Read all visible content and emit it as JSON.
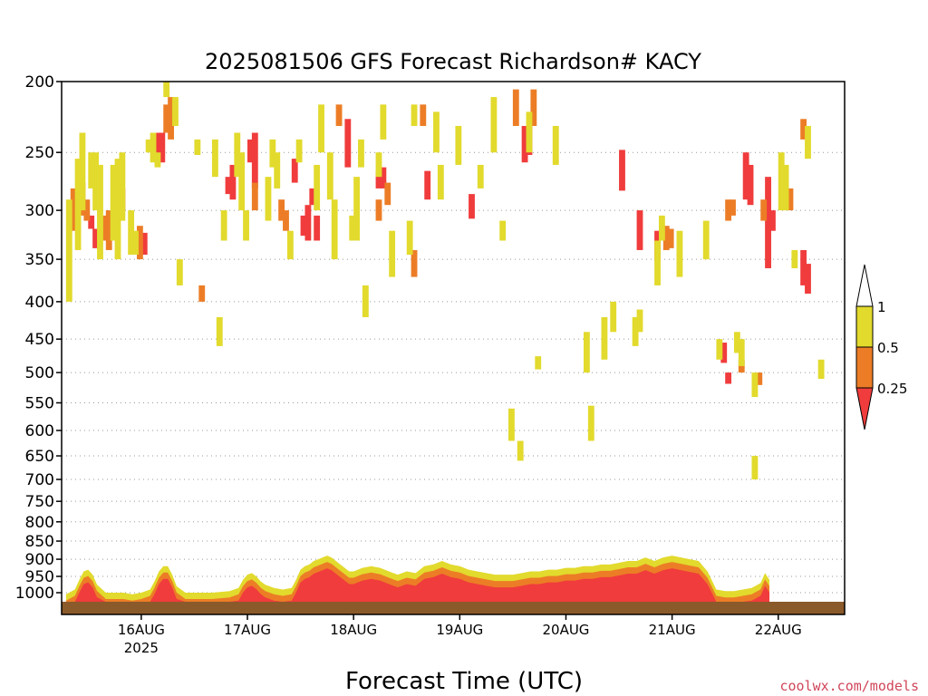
{
  "chart_data": {
    "type": "heatmap",
    "title": "2025081506 GFS Forecast Richardson# KACY",
    "xlabel": "Forecast Time (UTC)",
    "ylabel": "",
    "credit": "coolwx.com/models",
    "x_start_hour": 6,
    "x_end_hour": 183,
    "x_ticks": [
      {
        "label": "16AUG",
        "sub": "2025",
        "hour": 24
      },
      {
        "label": "17AUG",
        "hour": 48
      },
      {
        "label": "18AUG",
        "hour": 72
      },
      {
        "label": "19AUG",
        "hour": 96
      },
      {
        "label": "20AUG",
        "hour": 120
      },
      {
        "label": "21AUG",
        "hour": 144
      },
      {
        "label": "22AUG",
        "hour": 168
      }
    ],
    "y_ticks": [
      "200",
      "250",
      "300",
      "350",
      "400",
      "450",
      "500",
      "550",
      "600",
      "650",
      "700",
      "750",
      "800",
      "850",
      "900",
      "950",
      "1000"
    ],
    "y_range": [
      1000,
      200
    ],
    "legend": {
      "placement": "right",
      "labels": [
        "1",
        "0.5",
        "0.25"
      ],
      "colors": {
        "low": "#f03c3c",
        "mid": "#ec7d26",
        "high": "#e2da2d",
        "ground": "#8b5a2b"
      }
    },
    "series": [
      {
        "label": "0.25",
        "color": "#f03c3c",
        "cells": [
          [
            12,
            305,
            318
          ],
          [
            13,
            318,
            338
          ],
          [
            19,
            280,
            300
          ],
          [
            24,
            322,
            345
          ],
          [
            27,
            235,
            258
          ],
          [
            28,
            235,
            258
          ],
          [
            43,
            270,
            285
          ],
          [
            44,
            260,
            290
          ],
          [
            48,
            240,
            258
          ],
          [
            49,
            235,
            280
          ],
          [
            58,
            255,
            275
          ],
          [
            60,
            305,
            325
          ],
          [
            61,
            295,
            330
          ],
          [
            62,
            280,
            295
          ],
          [
            63,
            305,
            330
          ],
          [
            70,
            225,
            262
          ],
          [
            77,
            265,
            280
          ],
          [
            78,
            262,
            280
          ],
          [
            88,
            265,
            290
          ],
          [
            98,
            285,
            308
          ],
          [
            110,
            230,
            258
          ],
          [
            111,
            230,
            252
          ],
          [
            132,
            248,
            282
          ],
          [
            136,
            300,
            340
          ],
          [
            140,
            320,
            352
          ],
          [
            155,
            455,
            485
          ],
          [
            156,
            500,
            518
          ],
          [
            160,
            250,
            290
          ],
          [
            161,
            260,
            295
          ],
          [
            165,
            270,
            360
          ],
          [
            166,
            300,
            320
          ],
          [
            173,
            340,
            380
          ],
          [
            174,
            355,
            390
          ]
        ]
      },
      {
        "label": "0.5",
        "color": "#ec7d26",
        "cells": [
          [
            8,
            280,
            320
          ],
          [
            10,
            275,
            305
          ],
          [
            11,
            290,
            310
          ],
          [
            15,
            305,
            330
          ],
          [
            16,
            300,
            340
          ],
          [
            23,
            315,
            350
          ],
          [
            29,
            215,
            235
          ],
          [
            30,
            210,
            240
          ],
          [
            37,
            380,
            400
          ],
          [
            49,
            275,
            300
          ],
          [
            55,
            290,
            310
          ],
          [
            56,
            300,
            320
          ],
          [
            68,
            215,
            230
          ],
          [
            77,
            290,
            310
          ],
          [
            79,
            275,
            295
          ],
          [
            85,
            340,
            370
          ],
          [
            87,
            215,
            230
          ],
          [
            108,
            205,
            230
          ],
          [
            112,
            205,
            230
          ],
          [
            142,
            315,
            340
          ],
          [
            143,
            318,
            338
          ],
          [
            156,
            290,
            310
          ],
          [
            157,
            290,
            305
          ],
          [
            159,
            480,
            500
          ],
          [
            163,
            500,
            520
          ],
          [
            164,
            290,
            310
          ],
          [
            170,
            280,
            300
          ],
          [
            173,
            225,
            240
          ]
        ]
      },
      {
        "label": "1",
        "color": "#e2da2d",
        "cells": [
          [
            7,
            290,
            400
          ],
          [
            9,
            255,
            340
          ],
          [
            10,
            235,
            300
          ],
          [
            12,
            250,
            280
          ],
          [
            13,
            250,
            300
          ],
          [
            14,
            260,
            350
          ],
          [
            17,
            260,
            330
          ],
          [
            18,
            255,
            350
          ],
          [
            19,
            250,
            310
          ],
          [
            21,
            300,
            345
          ],
          [
            22,
            320,
            345
          ],
          [
            25,
            240,
            250
          ],
          [
            26,
            235,
            258
          ],
          [
            27,
            250,
            262
          ],
          [
            29,
            200,
            210
          ],
          [
            31,
            210,
            230
          ],
          [
            32,
            350,
            380
          ],
          [
            36,
            240,
            252
          ],
          [
            40,
            240,
            270
          ],
          [
            41,
            420,
            460
          ],
          [
            42,
            300,
            330
          ],
          [
            45,
            235,
            270
          ],
          [
            46,
            250,
            300
          ],
          [
            47,
            300,
            330
          ],
          [
            52,
            270,
            310
          ],
          [
            53,
            240,
            262
          ],
          [
            54,
            250,
            280
          ],
          [
            57,
            320,
            350
          ],
          [
            59,
            240,
            258
          ],
          [
            63,
            260,
            300
          ],
          [
            64,
            215,
            250
          ],
          [
            66,
            250,
            290
          ],
          [
            67,
            290,
            350
          ],
          [
            71,
            305,
            330
          ],
          [
            72,
            270,
            330
          ],
          [
            73,
            240,
            262
          ],
          [
            74,
            380,
            420
          ],
          [
            77,
            250,
            270
          ],
          [
            78,
            215,
            240
          ],
          [
            80,
            320,
            370
          ],
          [
            84,
            310,
            345
          ],
          [
            85,
            215,
            230
          ],
          [
            90,
            220,
            250
          ],
          [
            91,
            260,
            290
          ],
          [
            95,
            230,
            260
          ],
          [
            100,
            260,
            280
          ],
          [
            103,
            210,
            250
          ],
          [
            105,
            310,
            330
          ],
          [
            107,
            560,
            620
          ],
          [
            109,
            620,
            660
          ],
          [
            111,
            220,
            250
          ],
          [
            113,
            475,
            495
          ],
          [
            117,
            230,
            260
          ],
          [
            124,
            440,
            500
          ],
          [
            125,
            555,
            620
          ],
          [
            128,
            420,
            480
          ],
          [
            130,
            400,
            440
          ],
          [
            135,
            420,
            460
          ],
          [
            136,
            410,
            440
          ],
          [
            140,
            330,
            380
          ],
          [
            141,
            305,
            330
          ],
          [
            145,
            320,
            370
          ],
          [
            151,
            310,
            350
          ],
          [
            154,
            450,
            480
          ],
          [
            158,
            440,
            470
          ],
          [
            159,
            450,
            490
          ],
          [
            162,
            500,
            540
          ],
          [
            162,
            650,
            700
          ],
          [
            168,
            250,
            300
          ],
          [
            169,
            260,
            300
          ],
          [
            171,
            340,
            360
          ],
          [
            174,
            230,
            255
          ],
          [
            177,
            480,
            510
          ]
        ]
      },
      {
        "label": "boundary-layer",
        "color": "#f03c3c",
        "profile": [
          [
            7,
            1005
          ],
          [
            9,
            990
          ],
          [
            10,
            960
          ],
          [
            11,
            935
          ],
          [
            12,
            930
          ],
          [
            13,
            945
          ],
          [
            14,
            975
          ],
          [
            16,
            1000
          ],
          [
            20,
            1000
          ],
          [
            22,
            1005
          ],
          [
            24,
            1000
          ],
          [
            26,
            990
          ],
          [
            27,
            965
          ],
          [
            28,
            935
          ],
          [
            29,
            920
          ],
          [
            30,
            920
          ],
          [
            31,
            945
          ],
          [
            32,
            980
          ],
          [
            34,
            1000
          ],
          [
            40,
            1000
          ],
          [
            44,
            995
          ],
          [
            46,
            985
          ],
          [
            47,
            960
          ],
          [
            48,
            945
          ],
          [
            49,
            940
          ],
          [
            50,
            950
          ],
          [
            51,
            965
          ],
          [
            52,
            975
          ],
          [
            54,
            985
          ],
          [
            56,
            990
          ],
          [
            58,
            985
          ],
          [
            59,
            960
          ],
          [
            60,
            930
          ],
          [
            61,
            920
          ],
          [
            62,
            915
          ],
          [
            63,
            905
          ],
          [
            64,
            900
          ],
          [
            65,
            895
          ],
          [
            66,
            890
          ],
          [
            67,
            895
          ],
          [
            68,
            905
          ],
          [
            69,
            915
          ],
          [
            70,
            925
          ],
          [
            71,
            935
          ],
          [
            72,
            935
          ],
          [
            74,
            925
          ],
          [
            76,
            920
          ],
          [
            78,
            925
          ],
          [
            80,
            935
          ],
          [
            81,
            940
          ],
          [
            82,
            945
          ],
          [
            84,
            935
          ],
          [
            86,
            940
          ],
          [
            88,
            920
          ],
          [
            90,
            915
          ],
          [
            92,
            905
          ],
          [
            94,
            915
          ],
          [
            96,
            920
          ],
          [
            98,
            930
          ],
          [
            100,
            935
          ],
          [
            102,
            940
          ],
          [
            104,
            945
          ],
          [
            106,
            945
          ],
          [
            108,
            945
          ],
          [
            110,
            940
          ],
          [
            112,
            935
          ],
          [
            114,
            935
          ],
          [
            116,
            930
          ],
          [
            118,
            930
          ],
          [
            120,
            925
          ],
          [
            122,
            925
          ],
          [
            124,
            920
          ],
          [
            126,
            920
          ],
          [
            128,
            915
          ],
          [
            130,
            915
          ],
          [
            132,
            910
          ],
          [
            134,
            905
          ],
          [
            136,
            905
          ],
          [
            138,
            895
          ],
          [
            140,
            905
          ],
          [
            142,
            895
          ],
          [
            144,
            890
          ],
          [
            146,
            895
          ],
          [
            148,
            900
          ],
          [
            150,
            905
          ],
          [
            152,
            935
          ],
          [
            154,
            990
          ],
          [
            156,
            995
          ],
          [
            158,
            995
          ],
          [
            160,
            990
          ],
          [
            162,
            985
          ],
          [
            164,
            970
          ],
          [
            165,
            940
          ],
          [
            166,
            960
          ]
        ]
      }
    ]
  }
}
